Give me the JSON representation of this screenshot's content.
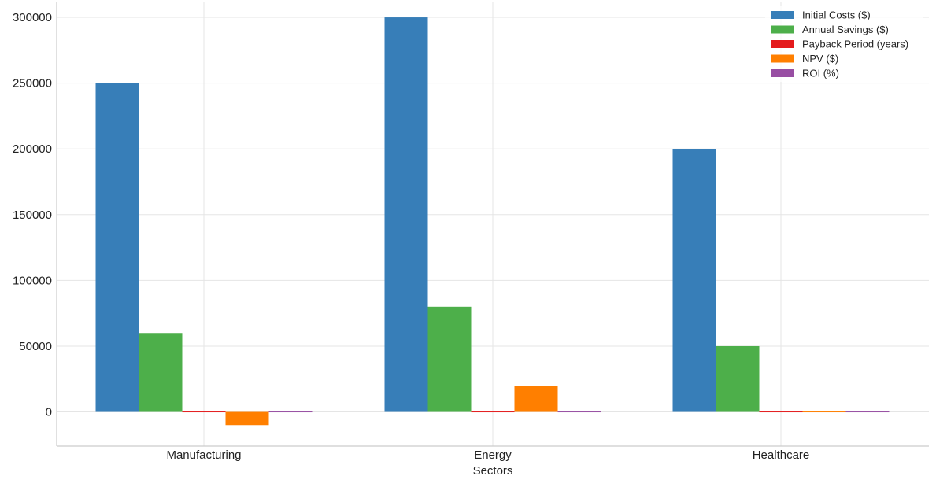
{
  "chart_data": {
    "type": "bar",
    "title": "",
    "xlabel": "Sectors",
    "ylabel": "",
    "categories": [
      "Manufacturing",
      "Energy",
      "Healthcare"
    ],
    "ylim": [
      -26000,
      312000
    ],
    "yticks": [
      0,
      50000,
      100000,
      150000,
      200000,
      250000,
      300000
    ],
    "grid": true,
    "legend_position": "top-right",
    "series": [
      {
        "name": "Initial Costs ($)",
        "color": "#377eb8",
        "values": [
          250000,
          300000,
          200000
        ]
      },
      {
        "name": "Annual Savings ($)",
        "color": "#4daf4a",
        "values": [
          60000,
          80000,
          50000
        ]
      },
      {
        "name": "Payback Period (years)",
        "color": "#e41a1c",
        "values": [
          4.2,
          3.8,
          4.0
        ]
      },
      {
        "name": "NPV ($)",
        "color": "#ff7f00",
        "values": [
          -10000,
          20000,
          0
        ]
      },
      {
        "name": "ROI (%)",
        "color": "#984ea3",
        "values": [
          24,
          27,
          25
        ]
      }
    ]
  }
}
